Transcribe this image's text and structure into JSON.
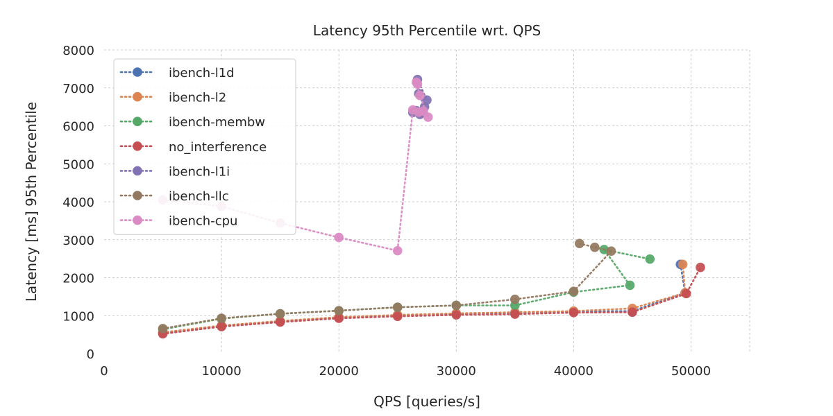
{
  "chart_data": {
    "type": "line",
    "title": "Latency 95th Percentile wrt. QPS",
    "xlabel": "QPS [queries/s]",
    "ylabel": "Latency [ms] 95th Percentile",
    "xlim": [
      0,
      55000
    ],
    "ylim": [
      0,
      8000
    ],
    "xticks": [
      "0",
      "10000",
      "20000",
      "30000",
      "40000",
      "50000"
    ],
    "yticks": [
      "0",
      "1000",
      "2000",
      "3000",
      "4000",
      "5000",
      "6000",
      "7000",
      "8000"
    ],
    "grid": true,
    "legend_position": "top-left",
    "series": [
      {
        "name": "ibench-l1d",
        "color": "#4c72b0",
        "x": [
          5000,
          10000,
          15000,
          20000,
          25000,
          30000,
          35000,
          40000,
          45000,
          49500,
          49100
        ],
        "y": [
          540,
          730,
          850,
          950,
          1010,
          1050,
          1070,
          1110,
          1120,
          1600,
          2350
        ]
      },
      {
        "name": "ibench-l2",
        "color": "#dd8452",
        "x": [
          5000,
          10000,
          15000,
          20000,
          25000,
          30000,
          35000,
          40000,
          45000,
          49500,
          49300
        ],
        "y": [
          560,
          740,
          860,
          960,
          1020,
          1060,
          1090,
          1120,
          1190,
          1600,
          2350
        ]
      },
      {
        "name": "ibench-membw",
        "color": "#55a868",
        "x": [
          5000,
          10000,
          15000,
          20000,
          25000,
          30000,
          35000,
          40000,
          44800,
          42600,
          46500
        ],
        "y": [
          640,
          920,
          1050,
          1130,
          1220,
          1270,
          1270,
          1620,
          1800,
          2740,
          2490
        ]
      },
      {
        "name": "no_interference",
        "color": "#c44e52",
        "x": [
          5000,
          10000,
          15000,
          20000,
          25000,
          30000,
          35000,
          40000,
          45000,
          49600,
          50800
        ],
        "y": [
          520,
          710,
          830,
          930,
          980,
          1020,
          1040,
          1080,
          1090,
          1580,
          2270
        ]
      },
      {
        "name": "ibench-l1i",
        "color": "#8172b3",
        "x": [
          26300,
          26600,
          26900,
          27100,
          27300,
          26800,
          26700,
          27500
        ],
        "y": [
          6350,
          6400,
          6300,
          6350,
          6500,
          6850,
          7220,
          6680
        ]
      },
      {
        "name": "ibench-llc",
        "color": "#937860",
        "x": [
          5000,
          10000,
          15000,
          20000,
          25000,
          30000,
          35000,
          40000,
          43200,
          41800,
          40500
        ],
        "y": [
          660,
          930,
          1050,
          1130,
          1220,
          1270,
          1430,
          1640,
          2700,
          2800,
          2900
        ]
      },
      {
        "name": "ibench-cpu",
        "color": "#da8bc3",
        "x": [
          5000,
          10000,
          15000,
          20000,
          25000,
          26300,
          26800,
          27200,
          27600,
          26900,
          26600,
          26700
        ],
        "y": [
          4050,
          3880,
          3440,
          3060,
          2710,
          6420,
          6360,
          6390,
          6230,
          6800,
          7150,
          7100
        ]
      }
    ]
  }
}
